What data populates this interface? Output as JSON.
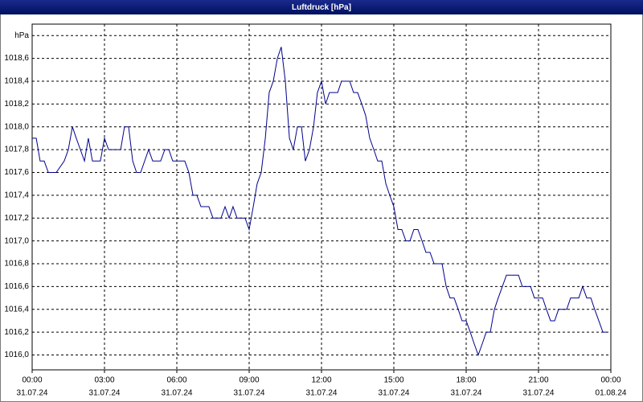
{
  "chart_data": {
    "type": "line",
    "title": "Luftdruck [hPa]",
    "color": "#00008b",
    "grid": true,
    "xlim": [
      0,
      24
    ],
    "xticks": [
      {
        "value": 0,
        "label": "00:00"
      },
      {
        "value": 3,
        "label": "03:00"
      },
      {
        "value": 6,
        "label": "06:00"
      },
      {
        "value": 9,
        "label": "09:00"
      },
      {
        "value": 12,
        "label": "12:00"
      },
      {
        "value": 15,
        "label": "15:00"
      },
      {
        "value": 18,
        "label": "18:00"
      },
      {
        "value": 21,
        "label": "21:00"
      },
      {
        "value": 24,
        "label": "00:00"
      }
    ],
    "xtick_dates": [
      "31.07.24",
      "31.07.24",
      "31.07.24",
      "31.07.24",
      "31.07.24",
      "31.07.24",
      "31.07.24",
      "31.07.24",
      "01.08.24"
    ],
    "ylim": [
      1015.87,
      1018.9
    ],
    "yticks": [
      {
        "value": 1016.0,
        "label": "1016,0"
      },
      {
        "value": 1016.2,
        "label": "1016,2"
      },
      {
        "value": 1016.4,
        "label": "1016,4"
      },
      {
        "value": 1016.6,
        "label": "1016,6"
      },
      {
        "value": 1016.8,
        "label": "1016,8"
      },
      {
        "value": 1017.0,
        "label": "1017,0"
      },
      {
        "value": 1017.2,
        "label": "1017,2"
      },
      {
        "value": 1017.4,
        "label": "1017,4"
      },
      {
        "value": 1017.6,
        "label": "1017,6"
      },
      {
        "value": 1017.8,
        "label": "1017,8"
      },
      {
        "value": 1018.0,
        "label": "1018,0"
      },
      {
        "value": 1018.2,
        "label": "1018,2"
      },
      {
        "value": 1018.4,
        "label": "1018,4"
      },
      {
        "value": 1018.6,
        "label": "1018,6"
      },
      {
        "value": 1018.8,
        "label": "hPa"
      }
    ],
    "x": [
      0,
      0.17,
      0.33,
      0.5,
      0.67,
      1,
      1.33,
      1.5,
      1.67,
      1.83,
      2,
      2.17,
      2.33,
      2.5,
      2.83,
      3,
      3.17,
      3.67,
      3.83,
      4,
      4.17,
      4.33,
      4.5,
      4.83,
      5,
      5.33,
      5.5,
      5.67,
      5.83,
      6.33,
      6.5,
      6.67,
      6.83,
      7,
      7.33,
      7.5,
      7.83,
      8,
      8.17,
      8.33,
      8.5,
      8.83,
      9,
      9.17,
      9.33,
      9.5,
      9.67,
      9.83,
      10,
      10.17,
      10.33,
      10.5,
      10.67,
      10.83,
      11,
      11.17,
      11.33,
      11.5,
      11.67,
      11.83,
      12,
      12.17,
      12.33,
      12.67,
      12.83,
      13.17,
      13.33,
      13.5,
      13.67,
      13.83,
      14,
      14.17,
      14.33,
      14.5,
      14.67,
      14.83,
      15,
      15.17,
      15.33,
      15.5,
      15.67,
      15.83,
      16,
      16.17,
      16.33,
      16.5,
      16.67,
      17,
      17.17,
      17.33,
      17.5,
      17.67,
      17.83,
      18,
      18.17,
      18.33,
      18.5,
      18.67,
      18.83,
      19,
      19.17,
      19.33,
      19.5,
      19.67,
      20.17,
      20.33,
      20.67,
      20.83,
      21.17,
      21.33,
      21.5,
      21.67,
      21.83,
      22.17,
      22.33,
      22.67,
      22.83,
      23,
      23.17,
      23.33,
      23.5,
      23.67,
      23.83
    ],
    "values": [
      1017.9,
      1017.9,
      1017.7,
      1017.7,
      1017.6,
      1017.6,
      1017.7,
      1017.8,
      1018.0,
      1017.9,
      1017.8,
      1017.7,
      1017.9,
      1017.7,
      1017.7,
      1017.9,
      1017.8,
      1017.8,
      1018.0,
      1018.0,
      1017.7,
      1017.6,
      1017.6,
      1017.8,
      1017.7,
      1017.7,
      1017.8,
      1017.8,
      1017.7,
      1017.7,
      1017.6,
      1017.4,
      1017.4,
      1017.3,
      1017.3,
      1017.2,
      1017.2,
      1017.3,
      1017.2,
      1017.3,
      1017.2,
      1017.2,
      1017.1,
      1017.3,
      1017.5,
      1017.6,
      1017.9,
      1018.3,
      1018.4,
      1018.6,
      1018.7,
      1018.4,
      1017.9,
      1017.8,
      1018.0,
      1018.0,
      1017.7,
      1017.8,
      1018.0,
      1018.3,
      1018.4,
      1018.2,
      1018.3,
      1018.3,
      1018.4,
      1018.4,
      1018.3,
      1018.3,
      1018.2,
      1018.1,
      1017.9,
      1017.8,
      1017.7,
      1017.7,
      1017.5,
      1017.4,
      1017.3,
      1017.1,
      1017.1,
      1017.0,
      1017.0,
      1017.1,
      1017.1,
      1017.0,
      1016.9,
      1016.9,
      1016.8,
      1016.8,
      1016.6,
      1016.5,
      1016.5,
      1016.4,
      1016.3,
      1016.3,
      1016.2,
      1016.1,
      1016.0,
      1016.1,
      1016.2,
      1016.2,
      1016.4,
      1016.5,
      1016.6,
      1016.7,
      1016.7,
      1016.6,
      1016.6,
      1016.5,
      1016.5,
      1016.4,
      1016.3,
      1016.3,
      1016.4,
      1016.4,
      1016.5,
      1016.5,
      1016.6,
      1016.5,
      1016.5,
      1016.4,
      1016.3,
      1016.2,
      1016.2
    ]
  }
}
